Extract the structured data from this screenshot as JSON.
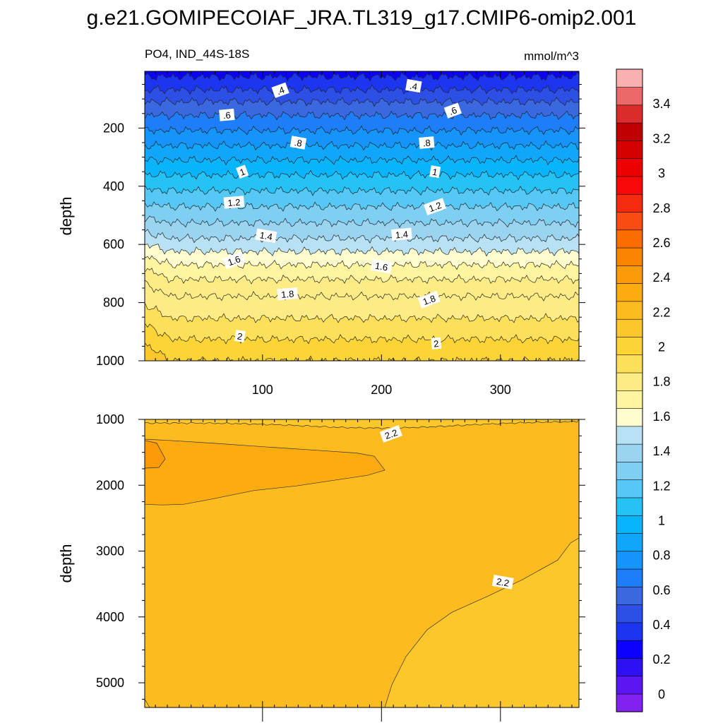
{
  "title": "g.e21.GOMIPECOIAF_JRA.TL319_g17.CMIP6-omip2.001",
  "colors": {
    "background": "#ffffff",
    "frame": "#000000"
  },
  "chart_data": [
    {
      "type": "contour",
      "variable_label": "PO4, IND_44S-18S",
      "units_label": "mmol/m^3",
      "xlabel": "",
      "ylabel": "depth",
      "x_ticks": [
        "100",
        "200",
        "300"
      ],
      "y_ticks": [
        "200",
        "400",
        "600",
        "800",
        "1000"
      ],
      "xlim": [
        1,
        366
      ],
      "ylim": [
        1000,
        5
      ],
      "contour_labels": [
        {
          "text": ".4",
          "x": 115,
          "depth": 70
        },
        {
          "text": ".4",
          "x": 227,
          "depth": 55
        },
        {
          "text": ".6",
          "x": 70,
          "depth": 155
        },
        {
          "text": ".6",
          "x": 260,
          "depth": 140
        },
        {
          "text": ".8",
          "x": 130,
          "depth": 250
        },
        {
          "text": ".8",
          "x": 238,
          "depth": 250
        },
        {
          "text": "1",
          "x": 83,
          "depth": 350
        },
        {
          "text": "1",
          "x": 245,
          "depth": 350
        },
        {
          "text": "1.2",
          "x": 76,
          "depth": 455
        },
        {
          "text": "1.2",
          "x": 245,
          "depth": 470
        },
        {
          "text": "1.4",
          "x": 103,
          "depth": 570
        },
        {
          "text": "1.4",
          "x": 217,
          "depth": 565
        },
        {
          "text": "1.6",
          "x": 76,
          "depth": 655
        },
        {
          "text": "1.6",
          "x": 200,
          "depth": 675
        },
        {
          "text": "1.8",
          "x": 121,
          "depth": 770
        },
        {
          "text": "1.8",
          "x": 240,
          "depth": 790
        },
        {
          "text": "2",
          "x": 81,
          "depth": 915
        },
        {
          "text": "2",
          "x": 246,
          "depth": 940
        }
      ]
    },
    {
      "type": "contour",
      "xlabel": "",
      "ylabel": "depth",
      "y_ticks": [
        "1000",
        "2000",
        "3000",
        "4000",
        "5000"
      ],
      "xlim": [
        1,
        366
      ],
      "ylim": [
        5375,
        1000
      ],
      "contour_labels": [
        {
          "text": "2.2",
          "x": 208,
          "depth": 1220
        },
        {
          "text": "2.2",
          "x": 302,
          "depth": 3470
        }
      ]
    }
  ],
  "colorbar": {
    "labels": [
      "0",
      "0.2",
      "0.4",
      "0.6",
      "0.8",
      "1",
      "1.2",
      "1.4",
      "1.6",
      "1.8",
      "2",
      "2.2",
      "2.4",
      "2.6",
      "2.8",
      "3",
      "3.2",
      "3.4"
    ],
    "range": [
      -0.1,
      3.6
    ],
    "colors": [
      "#8122f0",
      "#5a17f1",
      "#2e10f4",
      "#0c00ff",
      "#1c35f0",
      "#2c4fe6",
      "#3a68e0",
      "#1e7df9",
      "#1595fb",
      "#0fa6fb",
      "#08b5fb",
      "#25c2f6",
      "#55c8f5",
      "#7fcff3",
      "#9bd4f0",
      "#b8e2f4",
      "#fffdd0",
      "#fff5a0",
      "#fdec85",
      "#fde05a",
      "#fdd435",
      "#fcc72a",
      "#fdbb20",
      "#fcac10",
      "#fc9a08",
      "#fb8400",
      "#fb6d00",
      "#f84c12",
      "#f52b0f",
      "#f80808",
      "#ee0000",
      "#d50000",
      "#c00000",
      "#db2c2c",
      "#ea6a6a",
      "#fbb0b0"
    ]
  }
}
